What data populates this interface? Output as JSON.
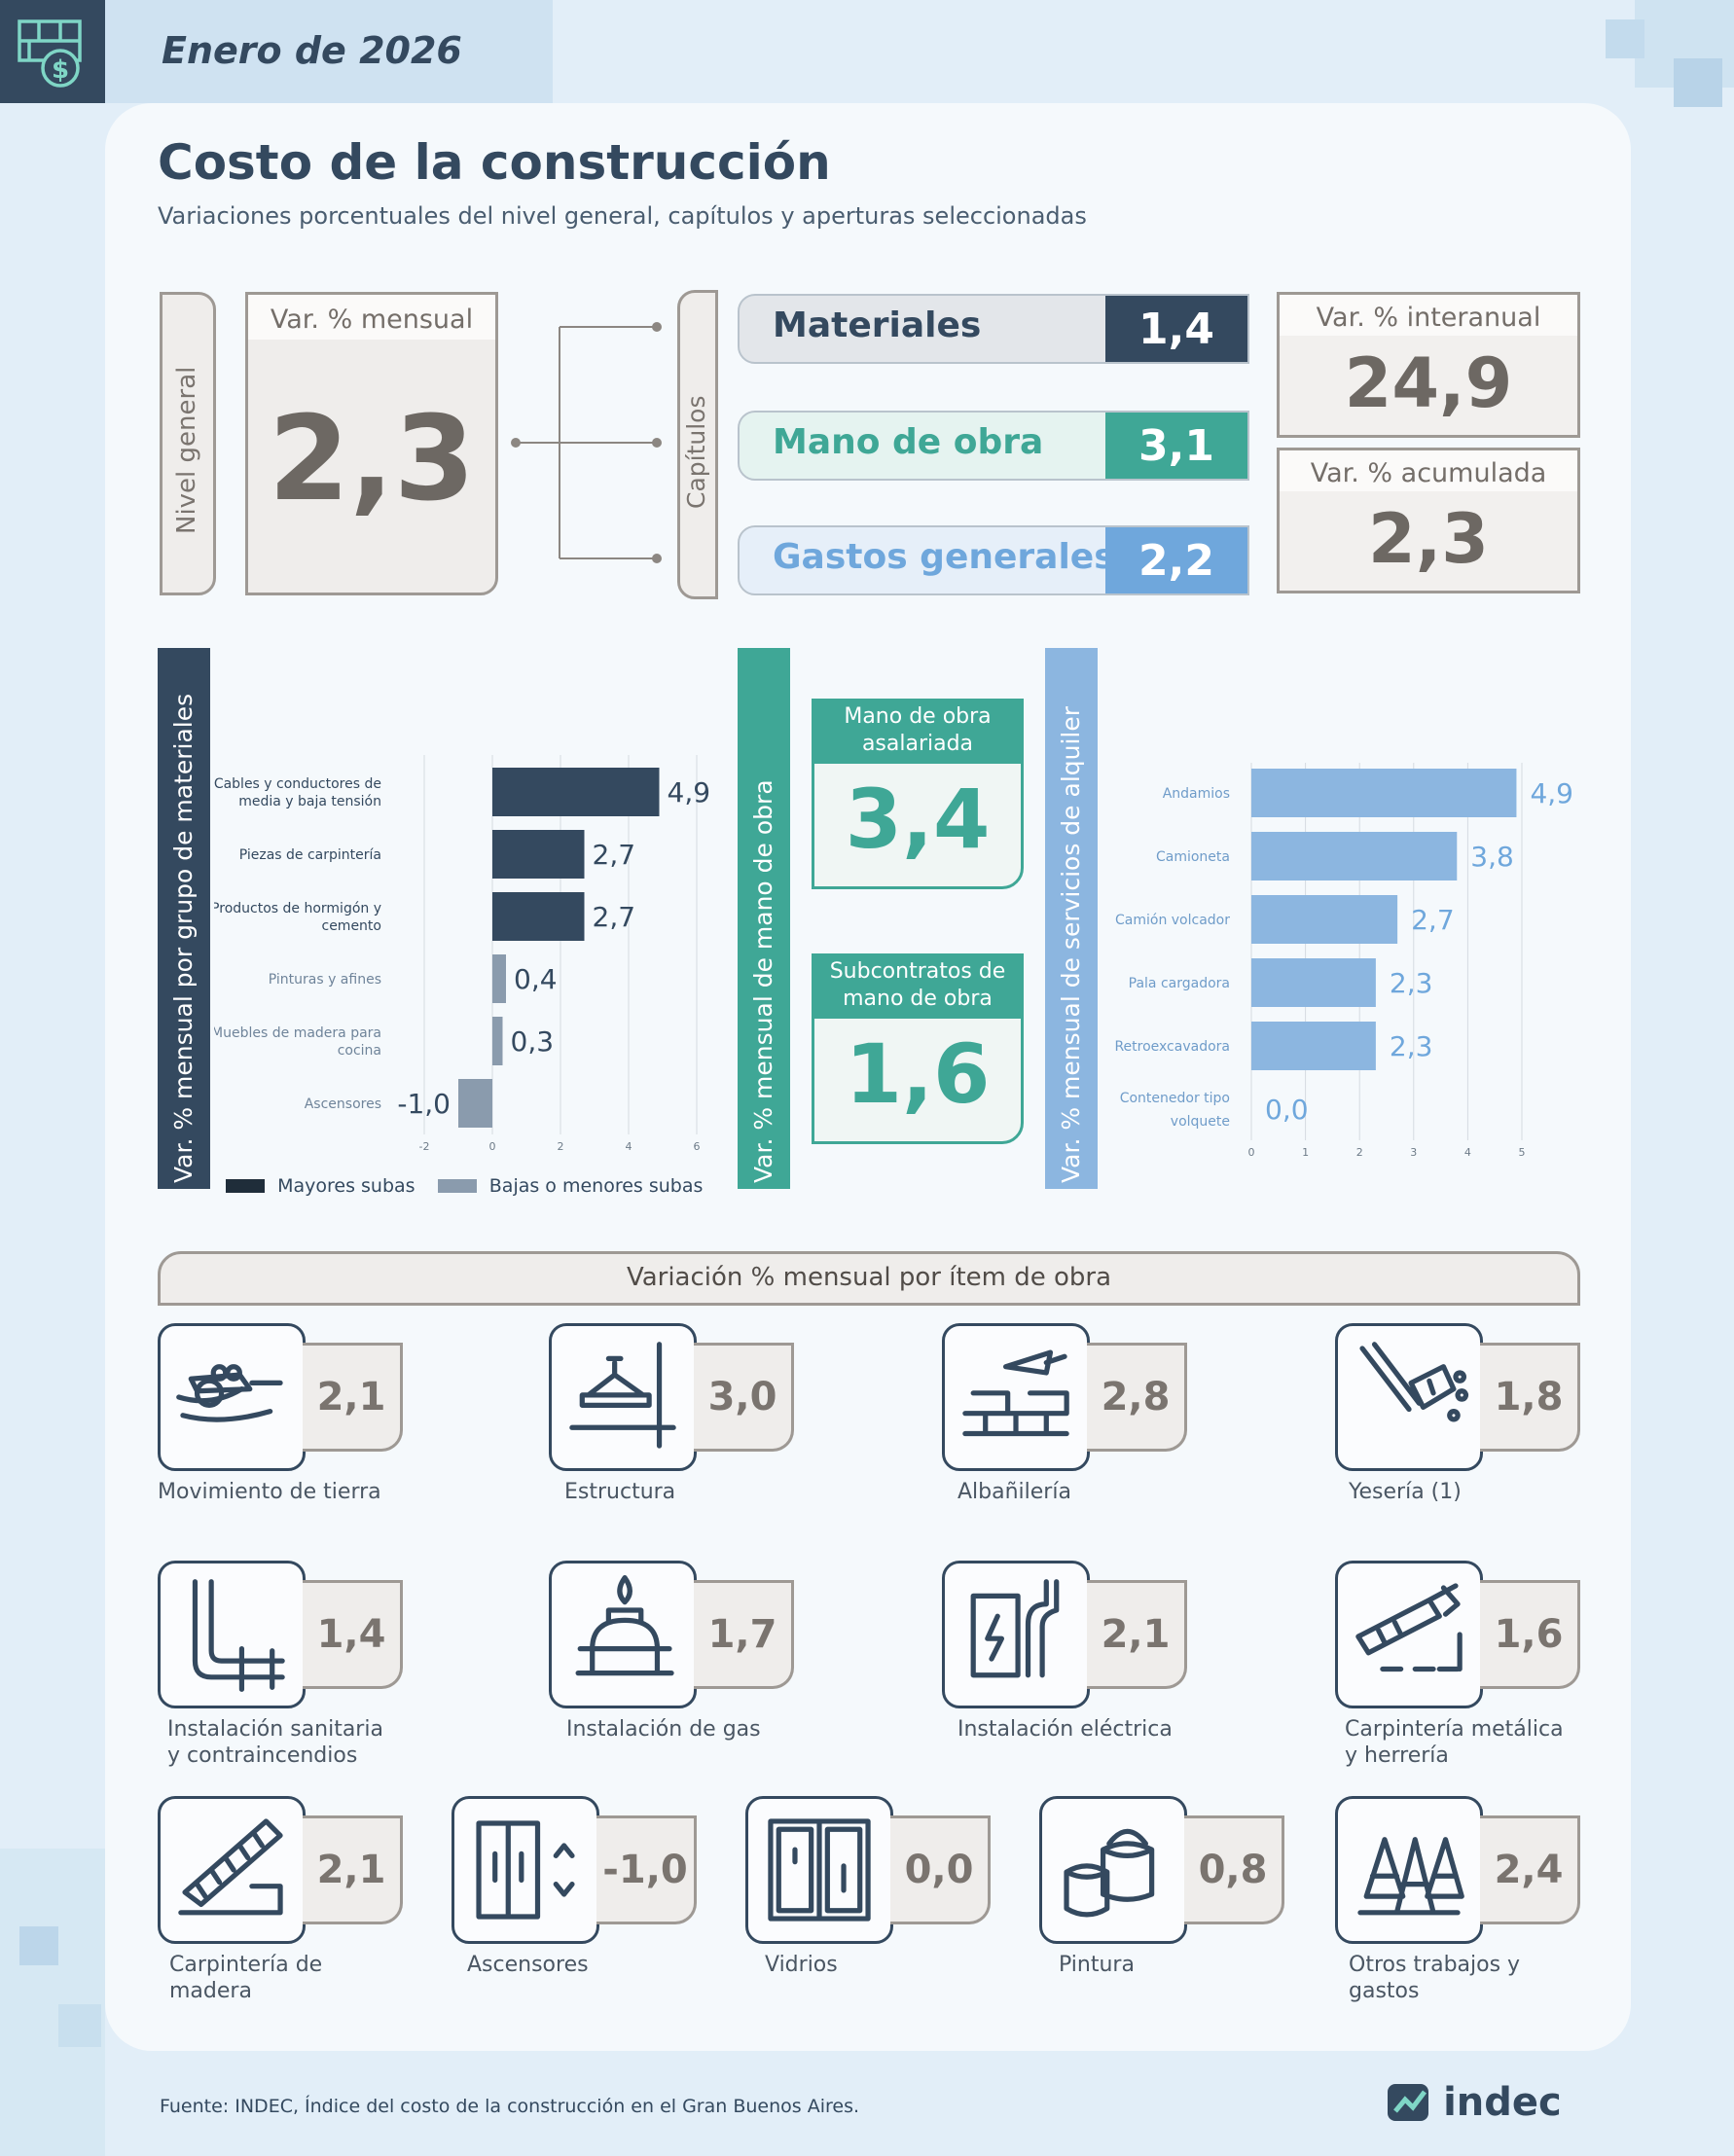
{
  "header": {
    "date": "Enero de 2026"
  },
  "title": "Costo de la construcción",
  "subtitle": "Variaciones porcentuales del nivel general, capítulos y aperturas seleccionadas",
  "nivel_general": {
    "tab_label": "Nivel general",
    "box_label": "Var. % mensual",
    "value": "2,3"
  },
  "capitulos": {
    "tab_label": "Capítulos",
    "items": [
      {
        "name": "Materiales",
        "value": "1,4",
        "color": "#34495f"
      },
      {
        "name": "Mano de obra",
        "value": "3,1",
        "color": "#3fa796"
      },
      {
        "name": "Gastos generales",
        "value": "2,2",
        "color": "#6fa7dc"
      }
    ]
  },
  "interanual": {
    "label": "Var. % interanual",
    "value": "24,9"
  },
  "acumulada": {
    "label": "Var. % acumulada",
    "value": "2,3"
  },
  "materiales_panel": {
    "tab_label": "Var. % mensual por grupo de materiales"
  },
  "mano_obra_panel": {
    "tab_label": "Var. % mensual de mano de obra",
    "asalariada": {
      "label": "Mano de obra asalariada",
      "value": "3,4"
    },
    "subcontratos": {
      "label": "Subcontratos de mano de obra",
      "value": "1,6"
    }
  },
  "alquiler_panel": {
    "tab_label": "Var. % mensual de servicios de alquiler"
  },
  "legend": {
    "mayores": "Mayores subas",
    "bajas": "Bajas o menores subas"
  },
  "chart_data": [
    {
      "type": "bar",
      "orientation": "horizontal",
      "categories": [
        "Cables y conductores de media y baja tensión",
        "Piezas de carpintería",
        "Productos de hormigón y cemento",
        "Pinturas y afines",
        "Muebles de madera para cocina",
        "Ascensores"
      ],
      "values": [
        4.9,
        2.7,
        2.7,
        0.4,
        0.3,
        -1.0
      ],
      "value_labels": [
        "4,9",
        "2,7",
        "2,7",
        "0,4",
        "0,3",
        "-1,0"
      ],
      "groups": [
        "mayores",
        "mayores",
        "mayores",
        "bajas",
        "bajas",
        "bajas"
      ],
      "xlim": [
        -2,
        6
      ],
      "ticks": [
        "-2",
        "0",
        "2",
        "4",
        "6"
      ],
      "colors": {
        "mayores": "#34495f",
        "bajas": "#8a9bad"
      }
    },
    {
      "type": "bar",
      "orientation": "horizontal",
      "categories": [
        "Andamios",
        "Camioneta",
        "Camión volcador",
        "Pala cargadora",
        "Retroexcavadora",
        "Contenedor tipo volquete"
      ],
      "values": [
        4.9,
        3.8,
        2.7,
        2.3,
        2.3,
        0.0
      ],
      "value_labels": [
        "4,9",
        "3,8",
        "2,7",
        "2,3",
        "2,3",
        "0,0"
      ],
      "xlim": [
        0,
        5
      ],
      "ticks": [
        "0",
        "1",
        "2",
        "3",
        "4",
        "5"
      ],
      "color": "#8cb6e0"
    }
  ],
  "items_section": {
    "title": "Variación % mensual por ítem de obra",
    "items": [
      {
        "label": "Movimiento de tierra",
        "value": "2,1",
        "icon": "wheelbarrow-icon"
      },
      {
        "label": "Estructura",
        "value": "3,0",
        "icon": "crane-beam-icon"
      },
      {
        "label": "Albañilería",
        "value": "2,8",
        "icon": "brick-trowel-icon"
      },
      {
        "label": "Yesería (1)",
        "value": "1,8",
        "icon": "plaster-icon"
      },
      {
        "label": "Instalación sanitaria y contraincendios",
        "value": "1,4",
        "icon": "pipes-icon"
      },
      {
        "label": "Instalación de gas",
        "value": "1,7",
        "icon": "gas-icon"
      },
      {
        "label": "Instalación eléctrica",
        "value": "2,1",
        "icon": "electric-panel-icon"
      },
      {
        "label": "Carpintería metálica y herrería",
        "value": "1,6",
        "icon": "welding-icon"
      },
      {
        "label": "Carpintería de madera",
        "value": "2,1",
        "icon": "saw-icon"
      },
      {
        "label": "Ascensores",
        "value": "-1,0",
        "icon": "elevator-icon"
      },
      {
        "label": "Vidrios",
        "value": "0,0",
        "icon": "window-icon"
      },
      {
        "label": "Pintura",
        "value": "0,8",
        "icon": "paint-cans-icon"
      },
      {
        "label": "Otros trabajos y gastos",
        "value": "2,4",
        "icon": "cones-icon"
      }
    ]
  },
  "source": "Fuente: INDEC, Índice del costo de la construcción en el Gran Buenos Aires.",
  "logo_text": "indec"
}
